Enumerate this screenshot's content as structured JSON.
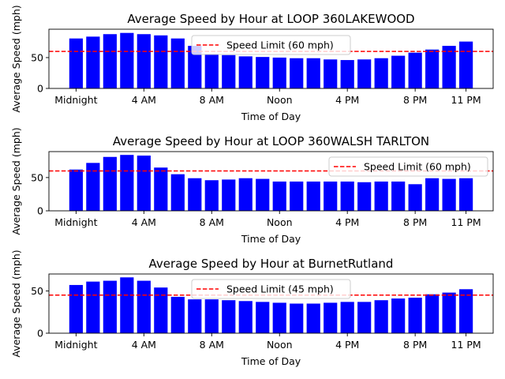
{
  "chart_data": [
    {
      "type": "bar",
      "title": "Average Speed by Hour at LOOP 360LAKEWOOD",
      "xlabel": "Time of Day",
      "ylabel": "Average Speed (mph)",
      "x": [
        0,
        1,
        2,
        3,
        4,
        5,
        6,
        7,
        8,
        9,
        10,
        11,
        12,
        13,
        14,
        15,
        16,
        17,
        18,
        19,
        20,
        21,
        22,
        23
      ],
      "values": [
        81,
        84,
        88,
        90,
        88,
        86,
        81,
        69,
        56,
        54,
        52,
        51,
        50,
        49,
        49,
        47,
        46,
        47,
        49,
        53,
        58,
        63,
        69,
        76
      ],
      "xlim": [
        -1.6,
        24.6
      ],
      "ylim": [
        0,
        96
      ],
      "x_ticks": [
        {
          "x": 0,
          "label": "Midnight"
        },
        {
          "x": 4,
          "label": "4 AM"
        },
        {
          "x": 8,
          "label": "8 AM"
        },
        {
          "x": 12,
          "label": "Noon"
        },
        {
          "x": 16,
          "label": "4 PM"
        },
        {
          "x": 20,
          "label": "8 PM"
        },
        {
          "x": 23,
          "label": "11 PM"
        }
      ],
      "y_ticks": [
        0,
        50
      ],
      "bar_color": "#0000ff",
      "reference_line": {
        "value": 60,
        "label": "Speed Limit (60 mph)",
        "color": "#ff0000",
        "style": "dashed"
      },
      "legend_position": "top-center",
      "grid": false
    },
    {
      "type": "bar",
      "title": "Average Speed by Hour at LOOP 360WALSH TARLTON",
      "xlabel": "Time of Day",
      "ylabel": "Average Speed (mph)",
      "x": [
        0,
        1,
        2,
        3,
        4,
        5,
        6,
        7,
        8,
        9,
        10,
        11,
        12,
        13,
        14,
        15,
        16,
        17,
        18,
        19,
        20,
        21,
        22,
        23
      ],
      "values": [
        62,
        72,
        81,
        84,
        83,
        65,
        55,
        49,
        46,
        47,
        49,
        48,
        44,
        44,
        44,
        44,
        44,
        43,
        44,
        44,
        40,
        49,
        48,
        49
      ],
      "xlim": [
        -1.6,
        24.6
      ],
      "ylim": [
        0,
        89
      ],
      "x_ticks": [
        {
          "x": 0,
          "label": "Midnight"
        },
        {
          "x": 4,
          "label": "4 AM"
        },
        {
          "x": 8,
          "label": "8 AM"
        },
        {
          "x": 12,
          "label": "Noon"
        },
        {
          "x": 16,
          "label": "4 PM"
        },
        {
          "x": 20,
          "label": "8 PM"
        },
        {
          "x": 23,
          "label": "11 PM"
        }
      ],
      "y_ticks": [
        0,
        50
      ],
      "bar_color": "#0000ff",
      "reference_line": {
        "value": 60,
        "label": "Speed Limit (60 mph)",
        "color": "#ff0000",
        "style": "dashed"
      },
      "legend_position": "top-right",
      "grid": false
    },
    {
      "type": "bar",
      "title": "Average Speed by Hour at BurnetRutland",
      "xlabel": "Time of Day",
      "ylabel": "Average Speed (mph)",
      "x": [
        0,
        1,
        2,
        3,
        4,
        5,
        6,
        7,
        8,
        9,
        10,
        11,
        12,
        13,
        14,
        15,
        16,
        17,
        18,
        19,
        20,
        21,
        22,
        23
      ],
      "values": [
        57,
        61,
        62,
        66,
        62,
        54,
        43,
        40,
        40,
        39,
        38,
        37,
        36,
        35,
        35,
        36,
        37,
        37,
        39,
        41,
        42,
        46,
        48,
        52
      ],
      "xlim": [
        -1.6,
        24.6
      ],
      "ylim": [
        0,
        70
      ],
      "x_ticks": [
        {
          "x": 0,
          "label": "Midnight"
        },
        {
          "x": 4,
          "label": "4 AM"
        },
        {
          "x": 8,
          "label": "8 AM"
        },
        {
          "x": 12,
          "label": "Noon"
        },
        {
          "x": 16,
          "label": "4 PM"
        },
        {
          "x": 20,
          "label": "8 PM"
        },
        {
          "x": 23,
          "label": "11 PM"
        }
      ],
      "y_ticks": [
        0,
        50
      ],
      "bar_color": "#0000ff",
      "reference_line": {
        "value": 45,
        "label": "Speed Limit (45 mph)",
        "color": "#ff0000",
        "style": "dashed"
      },
      "legend_position": "top-center",
      "grid": false
    }
  ]
}
